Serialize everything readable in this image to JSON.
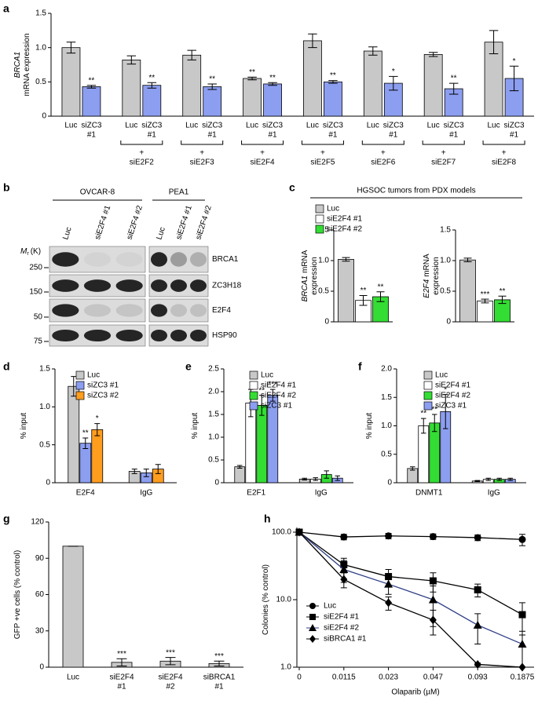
{
  "chart_data": [
    {
      "type": "bar",
      "label": "a",
      "ylabel": [
        [
          "BRCA1"
        ],
        [
          "mRNA expression"
        ]
      ],
      "ylabel_italic": true,
      "ylim": [
        0,
        1.5
      ],
      "yticks": [
        0,
        0.5,
        {
          "value": 1,
          "label": "1.0"
        },
        1.5
      ],
      "sublabels": [
        [
          "Luc"
        ],
        [
          "siZC3",
          "#1"
        ]
      ],
      "group_prefix": "+",
      "categories": [
        null,
        "siE2F2",
        "siE2F3",
        "siE2F4",
        "siE2F5",
        "siE2F6",
        "siE2F7",
        "siE2F8"
      ],
      "series": [
        {
          "color": "#c8c8c8",
          "values": [
            1.0,
            0.82,
            0.89,
            0.55,
            1.1,
            0.95,
            0.9,
            1.08
          ],
          "errors": [
            0.08,
            0.06,
            0.07,
            0.02,
            0.1,
            0.06,
            0.03,
            0.17
          ],
          "sig": [
            null,
            null,
            null,
            "**",
            null,
            null,
            null,
            null
          ]
        },
        {
          "color": "#8c9ef0",
          "values": [
            0.43,
            0.45,
            0.43,
            0.47,
            0.5,
            0.48,
            0.4,
            0.55
          ],
          "errors": [
            0.02,
            0.04,
            0.04,
            0.02,
            0.02,
            0.1,
            0.08,
            0.18
          ],
          "sig": [
            "**",
            "**",
            "**",
            "**",
            "**",
            "*",
            "**",
            "*"
          ]
        }
      ]
    },
    {
      "type": "blot",
      "label": "b",
      "mr_label": "M",
      "mr_sub": "r",
      "mr_unit": "(K)",
      "groups": [
        {
          "name": "OVCAR-8",
          "lanes": [
            "Luc",
            "siE2F4 #1",
            "siE2F4 #2"
          ]
        },
        {
          "name": "PEA1",
          "lanes": [
            "Luc",
            "siE2F4 #1",
            "siE2F4 #2"
          ]
        }
      ],
      "rows": [
        {
          "protein": "BRCA1",
          "marker": "250"
        },
        {
          "protein": "ZC3H18",
          "marker": "150"
        },
        {
          "protein": "E2F4",
          "marker": "50"
        },
        {
          "protein": "HSP90",
          "marker": "75"
        }
      ]
    },
    {
      "type": "bar",
      "label": "c",
      "header": "HGSOC tumors from PDX models",
      "ylabel": [
        [
          "BRCA1",
          "mRNA"
        ],
        [
          "expression"
        ]
      ],
      "ylabel_italic": true,
      "ylim": [
        0,
        1.5
      ],
      "yticks": [
        0,
        0.5,
        {
          "value": 1,
          "label": "1.0"
        },
        1.5
      ],
      "series": [
        {
          "name": "Luc",
          "color": "#c8c8c8",
          "values": [
            1.02
          ],
          "errors": [
            0.03
          ]
        },
        {
          "name": "siE2F4 #1",
          "color": "#ffffff",
          "values": [
            0.35
          ],
          "errors": [
            0.08
          ],
          "sig": [
            "**"
          ]
        },
        {
          "name": "siE2F4 #2",
          "color": "#33dd33",
          "values": [
            0.41
          ],
          "errors": [
            0.08
          ],
          "sig": [
            "**"
          ]
        }
      ]
    },
    {
      "type": "bar",
      "ylabel": [
        [
          "E2F4",
          "mRNA"
        ],
        [
          "expression"
        ]
      ],
      "ylabel_italic": true,
      "ylim": [
        0,
        1.5
      ],
      "yticks": [
        0,
        0.5,
        {
          "value": 1,
          "label": "1.0"
        },
        1.5
      ],
      "series": [
        {
          "color": "#c8c8c8",
          "values": [
            1.01
          ],
          "errors": [
            0.03
          ]
        },
        {
          "color": "#ffffff",
          "values": [
            0.34
          ],
          "errors": [
            0.03
          ],
          "sig": [
            "***"
          ]
        },
        {
          "color": "#33dd33",
          "values": [
            0.36
          ],
          "errors": [
            0.06
          ],
          "sig": [
            "**"
          ]
        }
      ]
    },
    {
      "type": "bar",
      "label": "d",
      "ylabel": [
        [
          "% input"
        ]
      ],
      "ylim": [
        0,
        1.5
      ],
      "yticks": [
        0,
        0.5,
        {
          "value": 1,
          "label": "1.0"
        },
        1.5
      ],
      "categories": [
        "E2F4",
        "IgG"
      ],
      "series": [
        {
          "name": "Luc",
          "color": "#c8c8c8",
          "values": [
            1.27,
            0.15
          ],
          "errors": [
            0.13,
            0.03
          ]
        },
        {
          "name": "siZC3 #1",
          "color": "#8c9ef0",
          "values": [
            0.52,
            0.13
          ],
          "errors": [
            0.07,
            0.05
          ],
          "sig": [
            "**",
            null
          ]
        },
        {
          "name": "siZC3 #2",
          "color": "#ff9d1f",
          "values": [
            0.7,
            0.18
          ],
          "errors": [
            0.08,
            0.06
          ],
          "sig": [
            "*",
            null
          ]
        }
      ]
    },
    {
      "type": "bar",
      "label": "e",
      "ylabel": [
        [
          "% input"
        ]
      ],
      "ylim": [
        0,
        2.5
      ],
      "yticks": [
        0,
        0.5,
        {
          "value": 1,
          "label": "1.0"
        },
        1.5,
        {
          "value": 2,
          "label": "2.0"
        },
        2.5
      ],
      "categories": [
        "E2F1",
        "IgG"
      ],
      "series": [
        {
          "name": "Luc",
          "color": "#c8c8c8",
          "values": [
            0.35,
            0.08
          ],
          "errors": [
            0.03,
            0.02
          ]
        },
        {
          "name": "siE2F4 #1",
          "color": "#ffffff",
          "values": [
            1.75,
            0.08
          ],
          "errors": [
            0.3,
            0.03
          ],
          "sig": [
            "*",
            null
          ]
        },
        {
          "name": "siE2F4 #2",
          "color": "#33dd33",
          "values": [
            1.7,
            0.18
          ],
          "errors": [
            0.22,
            0.08
          ],
          "sig": [
            "**",
            null
          ]
        },
        {
          "name": "siZC3 #1",
          "color": "#8c9ef0",
          "values": [
            1.92,
            0.1
          ],
          "errors": [
            0.13,
            0.05
          ],
          "sig": [
            "***",
            null
          ]
        }
      ]
    },
    {
      "type": "bar",
      "label": "f",
      "ylabel": [
        [
          "% input"
        ]
      ],
      "ylim": [
        0,
        2
      ],
      "yticks": [
        0,
        0.5,
        {
          "value": 1,
          "label": "1.0"
        },
        1.5,
        {
          "value": 2,
          "label": "2.0"
        }
      ],
      "categories": [
        "DNMT1",
        "IgG"
      ],
      "series": [
        {
          "name": "Luc",
          "color": "#c8c8c8",
          "values": [
            0.25,
            0.03
          ],
          "errors": [
            0.03,
            0.01
          ]
        },
        {
          "name": "siE2F4 #1",
          "color": "#ffffff",
          "values": [
            1.0,
            0.06
          ],
          "errors": [
            0.13,
            0.02
          ],
          "sig": [
            "**",
            null
          ]
        },
        {
          "name": "siE2F4 #2",
          "color": "#33dd33",
          "values": [
            1.05,
            0.06
          ],
          "errors": [
            0.15,
            0.02
          ],
          "sig": [
            "**",
            null
          ]
        },
        {
          "name": "siZC3 #1",
          "color": "#8c9ef0",
          "values": [
            1.25,
            0.06
          ],
          "errors": [
            0.3,
            0.02
          ],
          "sig": [
            "*",
            null
          ]
        }
      ]
    },
    {
      "type": "bar",
      "label": "g",
      "ylabel": [
        [
          "GFP +ve cells (% control)"
        ]
      ],
      "ylim": [
        0,
        120
      ],
      "yticks": [
        0,
        30,
        60,
        90,
        120
      ],
      "categories": [
        "Luc",
        [
          "siE2F4",
          "#1"
        ],
        [
          "siE2F4",
          "#2"
        ],
        [
          "siBRCA1",
          "#1"
        ]
      ],
      "color": "#c8c8c8",
      "values": [
        100,
        4,
        5,
        3
      ],
      "errors": [
        0,
        3,
        3,
        2
      ],
      "sig": [
        null,
        "***",
        "***",
        "***"
      ]
    },
    {
      "type": "line",
      "label": "h",
      "ylabel": [
        [
          "Colonies (% control)"
        ]
      ],
      "xlabel": "Olaparib (µM)",
      "log_y": true,
      "ylim": [
        1,
        100
      ],
      "yticks": [
        {
          "value": 1,
          "label": "1.0"
        },
        {
          "value": 10,
          "label": "10.0"
        },
        {
          "value": 100,
          "label": "100.0"
        }
      ],
      "categories": [
        "0",
        "0.0115",
        "0.023",
        "0.047",
        "0.093",
        "0.1875"
      ],
      "series": [
        {
          "name": "Luc",
          "color": "#000000",
          "marker": "circle",
          "values": [
            100,
            85,
            88,
            86,
            83,
            78
          ],
          "errors": [
            0,
            8,
            8,
            8,
            8,
            15
          ]
        },
        {
          "name": "siE2F4 #1",
          "color": "#000000",
          "marker": "square",
          "values": [
            100,
            33,
            22,
            19,
            14,
            6
          ],
          "errors": [
            0,
            8,
            6,
            6,
            3,
            3
          ]
        },
        {
          "name": "siE2F4 #2",
          "color": "#2f3f86",
          "marker": "triangle",
          "values": [
            100,
            28,
            17,
            10,
            4.2,
            2.2
          ],
          "errors": [
            0,
            10,
            5,
            6,
            2,
            1.2
          ]
        },
        {
          "name": "siBRCA1 #1",
          "color": "#000000",
          "marker": "diamond",
          "values": [
            100,
            20,
            9,
            5,
            1.1,
            1.0
          ],
          "errors": [
            0,
            5,
            2,
            2,
            0.05,
            0
          ]
        }
      ]
    }
  ]
}
